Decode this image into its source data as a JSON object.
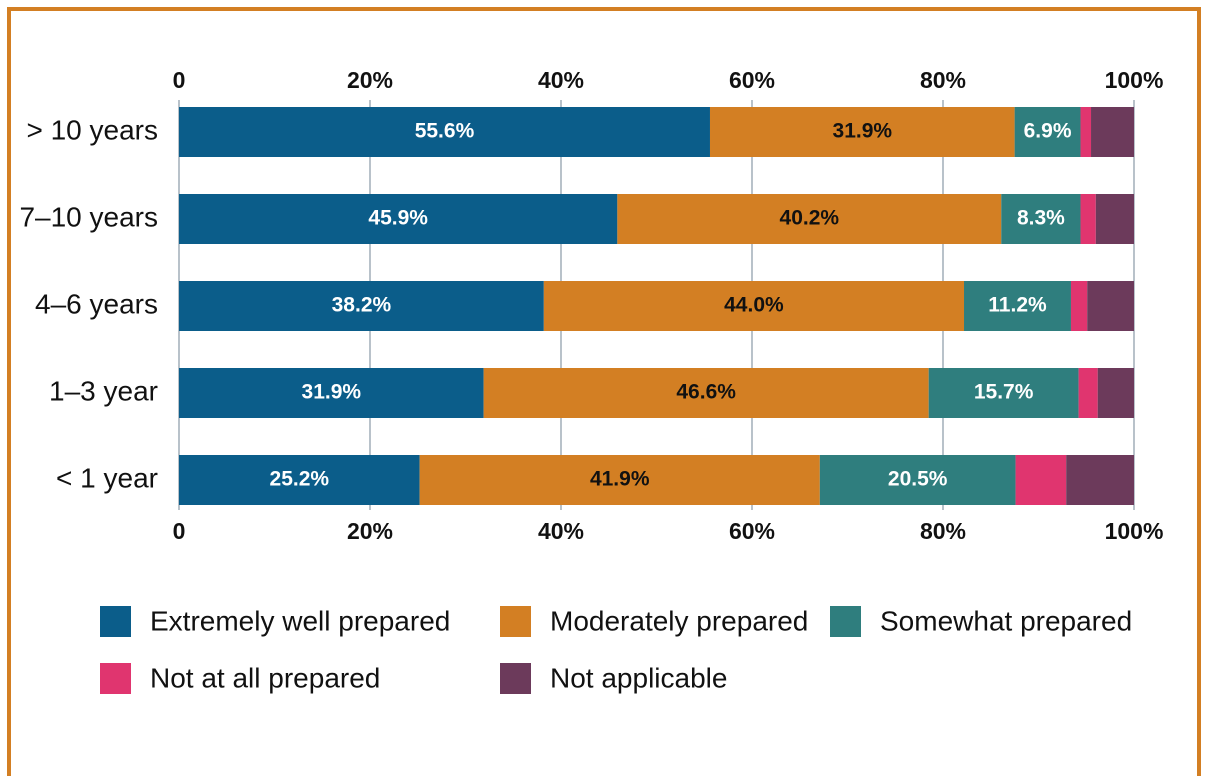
{
  "chart_data": {
    "type": "stacked_barh",
    "categories": [
      "> 10 years",
      "7–10 years",
      "4–6 years",
      "1–3 year",
      "< 1 year"
    ],
    "series": [
      {
        "name": "Extremely well prepared",
        "color": "#0b5d8a",
        "values": [
          55.6,
          45.9,
          38.2,
          31.9,
          25.2
        ],
        "value_labels": [
          "55.6%",
          "45.9%",
          "38.2%",
          "31.9%",
          "25.2%"
        ]
      },
      {
        "name": "Moderately prepared",
        "color": "#d37f23",
        "values": [
          31.9,
          40.2,
          44.0,
          46.6,
          41.9
        ],
        "value_labels": [
          "31.9%",
          "40.2%",
          "44.0%",
          "46.6%",
          "41.9%"
        ]
      },
      {
        "name": "Somewhat prepared",
        "color": "#2f7e7e",
        "values": [
          6.9,
          8.3,
          11.2,
          15.7,
          20.5
        ],
        "value_labels": [
          "6.9%",
          "8.3%",
          "11.2%",
          "15.7%",
          "20.5%"
        ]
      },
      {
        "name": "Not at all prepared",
        "color": "#e0356f",
        "values": [
          1.1,
          1.6,
          1.7,
          2.0,
          5.3
        ]
      },
      {
        "name": "Not applicable",
        "color": "#6c3a5b",
        "values": [
          4.5,
          4.0,
          4.9,
          3.8,
          7.1
        ]
      }
    ],
    "xlim": [
      0,
      100
    ],
    "xticks": [
      0,
      {
        "value": 20,
        "label": "20%"
      },
      {
        "value": 40,
        "label": "40%"
      },
      {
        "value": 60,
        "label": "60%"
      },
      {
        "value": 80,
        "label": "80%"
      },
      {
        "value": 100,
        "label": "100%"
      }
    ],
    "grid": true
  }
}
